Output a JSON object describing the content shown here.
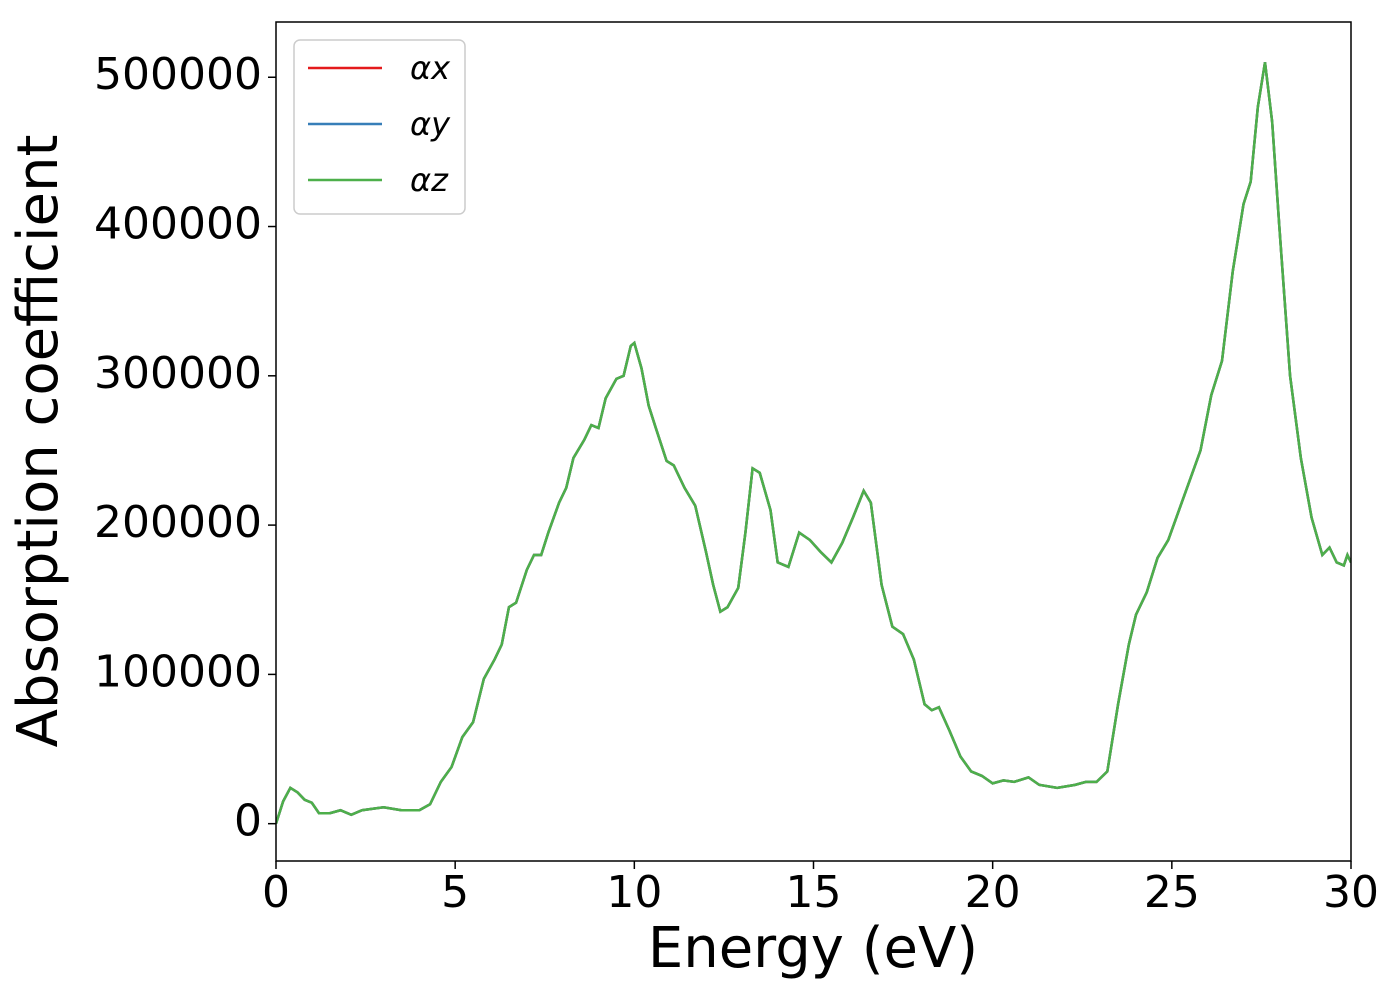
{
  "chart_data": {
    "type": "line",
    "xlabel": "Energy (eV)",
    "ylabel": "Absorption coefficient",
    "xlim": [
      0,
      30
    ],
    "xticks": [
      0,
      5,
      10,
      15,
      20,
      25,
      30
    ],
    "ylim": [
      -25000,
      537000
    ],
    "yticks": [
      0,
      100000,
      200000,
      300000,
      400000,
      500000
    ],
    "grid": false,
    "legend": "upper left",
    "x": [
      0,
      0.2,
      0.4,
      0.6,
      0.8,
      1.0,
      1.2,
      1.5,
      1.8,
      2.1,
      2.4,
      2.7,
      3.0,
      3.5,
      4.0,
      4.3,
      4.6,
      4.9,
      5.2,
      5.5,
      5.8,
      6.1,
      6.3,
      6.5,
      6.7,
      7.0,
      7.2,
      7.4,
      7.6,
      7.9,
      8.1,
      8.3,
      8.6,
      8.8,
      9.0,
      9.2,
      9.5,
      9.7,
      9.9,
      10.0,
      10.2,
      10.4,
      10.6,
      10.9,
      11.1,
      11.4,
      11.7,
      12.0,
      12.2,
      12.4,
      12.6,
      12.9,
      13.1,
      13.3,
      13.5,
      13.8,
      14.0,
      14.3,
      14.6,
      14.9,
      15.2,
      15.5,
      15.8,
      16.1,
      16.4,
      16.6,
      16.9,
      17.2,
      17.5,
      17.8,
      18.1,
      18.3,
      18.5,
      18.8,
      19.1,
      19.4,
      19.7,
      20.0,
      20.3,
      20.6,
      21.0,
      21.3,
      21.8,
      22.3,
      22.6,
      22.9,
      23.2,
      23.5,
      23.8,
      24.0,
      24.3,
      24.6,
      24.9,
      25.2,
      25.5,
      25.8,
      26.1,
      26.4,
      26.7,
      27.0,
      27.2,
      27.4,
      27.6,
      27.8,
      28.0,
      28.3,
      28.6,
      28.9,
      29.2,
      29.4,
      29.6,
      29.8,
      29.9,
      30.0
    ],
    "series": [
      {
        "name": "αx",
        "color": "#e41a1c",
        "values": [
          0,
          15000,
          24000,
          21000,
          16000,
          14000,
          7000,
          7000,
          9000,
          6000,
          9000,
          10000,
          11000,
          9000,
          9000,
          13000,
          28000,
          38000,
          58000,
          68000,
          97000,
          110000,
          120000,
          145000,
          148000,
          170000,
          180000,
          180000,
          195000,
          215000,
          225000,
          245000,
          257000,
          267000,
          265000,
          285000,
          298000,
          300000,
          320000,
          322000,
          305000,
          280000,
          265000,
          243000,
          240000,
          225000,
          213000,
          182000,
          160000,
          142000,
          145000,
          158000,
          195000,
          238000,
          235000,
          210000,
          175000,
          172000,
          195000,
          190000,
          182000,
          175000,
          188000,
          205000,
          223000,
          215000,
          160000,
          132000,
          127000,
          110000,
          80000,
          76000,
          78000,
          62000,
          45000,
          35000,
          32000,
          27000,
          29000,
          28000,
          31000,
          26000,
          24000,
          26000,
          28000,
          28000,
          35000,
          80000,
          120000,
          140000,
          155000,
          178000,
          190000,
          210000,
          230000,
          250000,
          287000,
          310000,
          370000,
          415000,
          430000,
          480000,
          510000,
          470000,
          400000,
          300000,
          245000,
          205000,
          180000,
          185000,
          175000,
          173000,
          180000,
          175000
        ]
      },
      {
        "name": "αy",
        "color": "#377eb8",
        "values": [
          0,
          15000,
          24000,
          21000,
          16000,
          14000,
          7000,
          7000,
          9000,
          6000,
          9000,
          10000,
          11000,
          9000,
          9000,
          13000,
          28000,
          38000,
          58000,
          68000,
          97000,
          110000,
          120000,
          145000,
          148000,
          170000,
          180000,
          180000,
          195000,
          215000,
          225000,
          245000,
          257000,
          267000,
          265000,
          285000,
          298000,
          300000,
          320000,
          322000,
          305000,
          280000,
          265000,
          243000,
          240000,
          225000,
          213000,
          182000,
          160000,
          142000,
          145000,
          158000,
          195000,
          238000,
          235000,
          210000,
          175000,
          172000,
          195000,
          190000,
          182000,
          175000,
          188000,
          205000,
          223000,
          215000,
          160000,
          132000,
          127000,
          110000,
          80000,
          76000,
          78000,
          62000,
          45000,
          35000,
          32000,
          27000,
          29000,
          28000,
          31000,
          26000,
          24000,
          26000,
          28000,
          28000,
          35000,
          80000,
          120000,
          140000,
          155000,
          178000,
          190000,
          210000,
          230000,
          250000,
          287000,
          310000,
          370000,
          415000,
          430000,
          480000,
          510000,
          470000,
          400000,
          300000,
          245000,
          205000,
          180000,
          185000,
          175000,
          173000,
          180000,
          175000
        ]
      },
      {
        "name": "αz",
        "color": "#4daf4a",
        "values": [
          0,
          15000,
          24000,
          21000,
          16000,
          14000,
          7000,
          7000,
          9000,
          6000,
          9000,
          10000,
          11000,
          9000,
          9000,
          13000,
          28000,
          38000,
          58000,
          68000,
          97000,
          110000,
          120000,
          145000,
          148000,
          170000,
          180000,
          180000,
          195000,
          215000,
          225000,
          245000,
          257000,
          267000,
          265000,
          285000,
          298000,
          300000,
          320000,
          322000,
          305000,
          280000,
          265000,
          243000,
          240000,
          225000,
          213000,
          182000,
          160000,
          142000,
          145000,
          158000,
          195000,
          238000,
          235000,
          210000,
          175000,
          172000,
          195000,
          190000,
          182000,
          175000,
          188000,
          205000,
          223000,
          215000,
          160000,
          132000,
          127000,
          110000,
          80000,
          76000,
          78000,
          62000,
          45000,
          35000,
          32000,
          27000,
          29000,
          28000,
          31000,
          26000,
          24000,
          26000,
          28000,
          28000,
          35000,
          80000,
          120000,
          140000,
          155000,
          178000,
          190000,
          210000,
          230000,
          250000,
          287000,
          310000,
          370000,
          415000,
          430000,
          480000,
          510000,
          470000,
          400000,
          300000,
          245000,
          205000,
          180000,
          185000,
          175000,
          173000,
          180000,
          175000
        ]
      }
    ]
  }
}
